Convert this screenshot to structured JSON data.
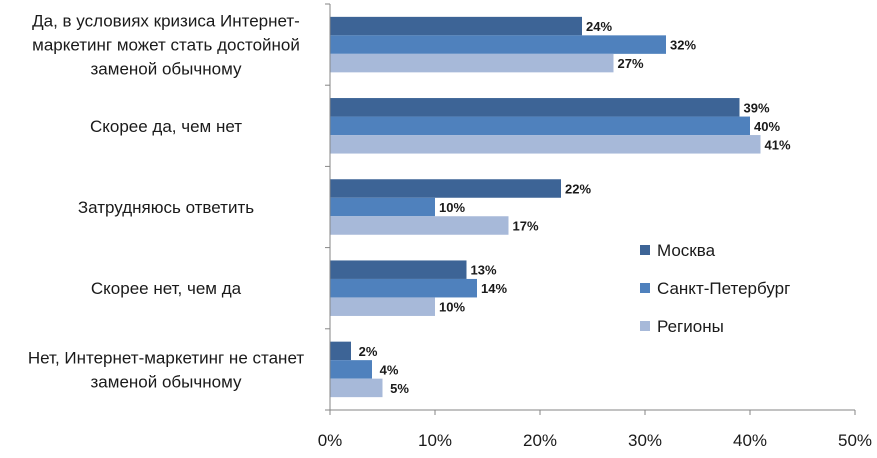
{
  "chart_data": {
    "type": "bar",
    "orientation": "horizontal",
    "categories": [
      [
        "Да, в условиях кризиса Интернет-",
        "маркетинг может стать достойной",
        "заменой обычному"
      ],
      [
        "Скорее да, чем нет"
      ],
      [
        "Затрудняюсь ответить"
      ],
      [
        "Скорее нет, чем да"
      ],
      [
        "Нет, Интернет-маркетинг  не станет",
        "заменой обычному"
      ]
    ],
    "series": [
      {
        "name": "Москва",
        "color": "#3d6496",
        "values": [
          24,
          39,
          22,
          13,
          2
        ],
        "labels": [
          "24%",
          "39%",
          "22%",
          "13%",
          "2%"
        ]
      },
      {
        "name": "Санкт-Петербург",
        "color": "#4f81bd",
        "values": [
          32,
          40,
          10,
          14,
          4
        ],
        "labels": [
          "32%",
          "40%",
          "10%",
          "14%",
          "4%"
        ]
      },
      {
        "name": "Регионы",
        "color": "#a7b9d9",
        "values": [
          27,
          41,
          17,
          10,
          5
        ],
        "labels": [
          "27%",
          "41%",
          "17%",
          "10%",
          "5%"
        ]
      }
    ],
    "xlim": [
      0,
      50
    ],
    "ticks": [
      "0%",
      "10%",
      "20%",
      "30%",
      "40%",
      "50%"
    ],
    "title": "",
    "xlabel": "",
    "ylabel": "",
    "grid": false,
    "legend_position": "right"
  }
}
